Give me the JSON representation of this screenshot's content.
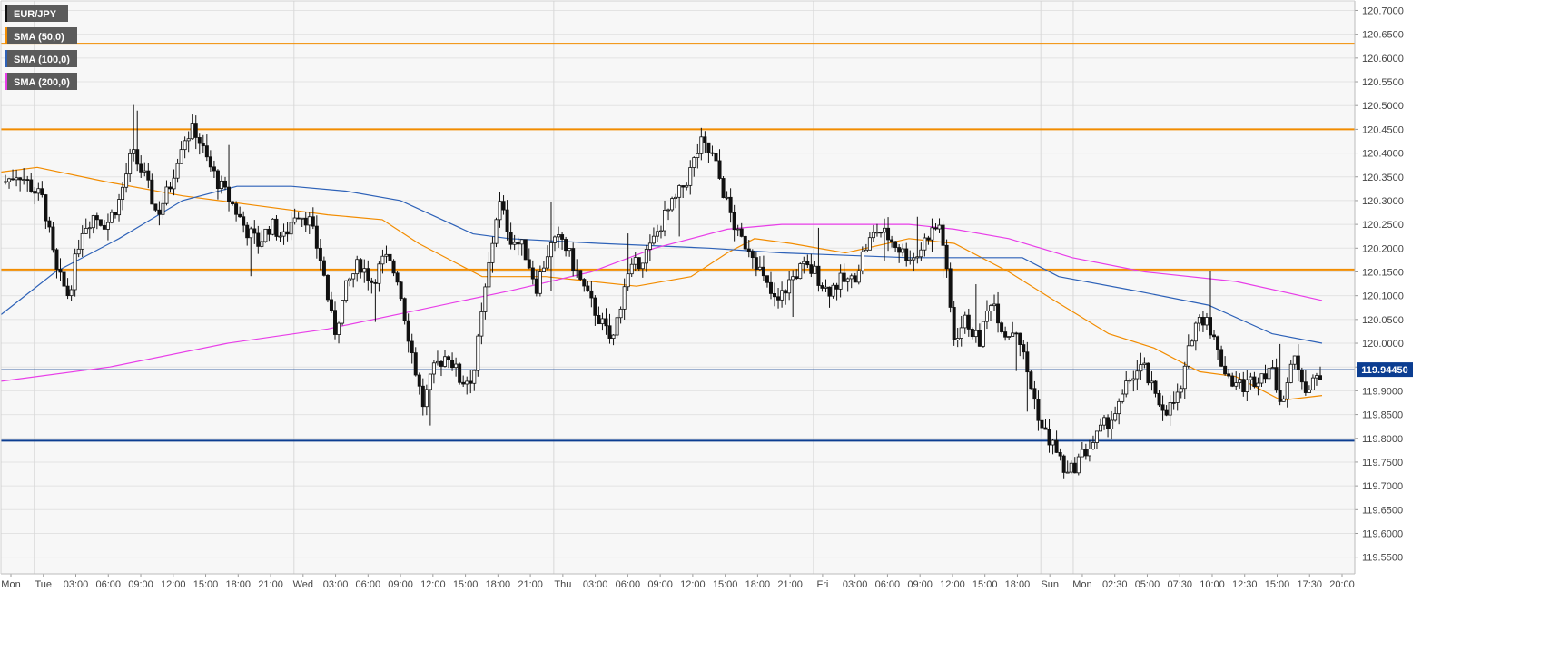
{
  "chart_data": {
    "type": "candlestick",
    "symbol": "EURJPY",
    "price_axis": {
      "ticks": [
        "120.7000",
        "120.6500",
        "120.6000",
        "120.5500",
        "120.5000",
        "120.4500",
        "120.4000",
        "120.3500",
        "120.3000",
        "120.2500",
        "120.2000",
        "120.1500",
        "120.1000",
        "120.0500",
        "120.0000",
        "119.9500",
        "119.9000",
        "119.8500",
        "119.8000",
        "119.7500",
        "119.7000",
        "119.6500",
        "119.6000",
        "119.5500"
      ],
      "range": [
        119.515,
        120.72
      ],
      "position": "right"
    },
    "time_axis": {
      "labels": [
        "Mon",
        "Tue",
        "03:00",
        "06:00",
        "09:00",
        "12:00",
        "15:00",
        "18:00",
        "21:00",
        "Wed",
        "03:00",
        "06:00",
        "09:00",
        "12:00",
        "15:00",
        "18:00",
        "21:00",
        "Thu",
        "03:00",
        "06:00",
        "09:00",
        "12:00",
        "15:00",
        "18:00",
        "21:00",
        "Fri",
        "03:00",
        "06:00",
        "09:00",
        "12:00",
        "15:00",
        "18:00",
        "Sun",
        "Mon",
        "02:30",
        "05:00",
        "07:30",
        "10:00",
        "12:30",
        "15:00",
        "17:30",
        "20:00"
      ]
    },
    "current_price": {
      "label": "119.94450",
      "value": 119.9445,
      "color": "#0b3d91"
    },
    "horizontal_levels": [
      {
        "value": 120.63,
        "color": "#f28c00"
      },
      {
        "value": 120.45,
        "color": "#f28c00"
      },
      {
        "value": 120.155,
        "color": "#f28c00"
      },
      {
        "value": 119.795,
        "color": "#0b3d91"
      }
    ],
    "legend": {
      "placement": "top-left",
      "items": [
        {
          "label": "EUR/JPY",
          "color": "#111111"
        },
        {
          "label": "SMA (50,0)",
          "color": "#f28c00"
        },
        {
          "label": "SMA (100,0)",
          "color": "#2e62b8"
        },
        {
          "label": "SMA (200,0)",
          "color": "#e83ee8"
        }
      ]
    },
    "grid": true,
    "candle_close_anchors": [
      120.34,
      120.36,
      120.33,
      120.3,
      120.15,
      120.1,
      120.24,
      120.27,
      120.25,
      120.3,
      120.4,
      120.35,
      120.27,
      120.33,
      120.43,
      120.45,
      120.38,
      120.33,
      120.29,
      120.24,
      120.21,
      120.25,
      120.22,
      120.28,
      120.26,
      120.17,
      120.02,
      120.12,
      120.17,
      120.13,
      120.18,
      120.14,
      120.0,
      119.87,
      119.95,
      119.98,
      119.92,
      119.93,
      120.12,
      120.3,
      120.22,
      120.2,
      120.12,
      120.2,
      120.22,
      120.16,
      120.1,
      120.05,
      120.0,
      120.13,
      120.17,
      120.2,
      120.26,
      120.3,
      120.35,
      120.42,
      120.39,
      120.3,
      120.22,
      120.2,
      120.13,
      120.08,
      120.13,
      120.16,
      120.15,
      120.11,
      120.13,
      120.13,
      120.2,
      120.24,
      120.22,
      120.19,
      120.18,
      120.23,
      120.25,
      120.01,
      120.05,
      120.0,
      120.1,
      120.02,
      120.03,
      119.92,
      119.82,
      119.78,
      119.72,
      119.76,
      119.79,
      119.83,
      119.86,
      119.93,
      119.95,
      119.88,
      119.86,
      119.9,
      120.04,
      120.06,
      119.97,
      119.92,
      119.91,
      119.93,
      119.95,
      119.88,
      119.97,
      119.9,
      119.94
    ],
    "sma_paths": {
      "sma_50": [
        [
          0,
          120.36
        ],
        [
          40,
          120.37
        ],
        [
          115,
          120.34
        ],
        [
          200,
          120.31
        ],
        [
          280,
          120.29
        ],
        [
          360,
          120.27
        ],
        [
          420,
          120.26
        ],
        [
          460,
          120.21
        ],
        [
          500,
          120.17
        ],
        [
          530,
          120.14
        ],
        [
          600,
          120.14
        ],
        [
          700,
          120.12
        ],
        [
          760,
          120.14
        ],
        [
          800,
          120.19
        ],
        [
          830,
          120.22
        ],
        [
          870,
          120.21
        ],
        [
          930,
          120.19
        ],
        [
          1000,
          120.22
        ],
        [
          1050,
          120.21
        ],
        [
          1110,
          120.15
        ],
        [
          1160,
          120.09
        ],
        [
          1220,
          120.02
        ],
        [
          1270,
          119.99
        ],
        [
          1320,
          119.94
        ],
        [
          1360,
          119.93
        ],
        [
          1410,
          119.88
        ],
        [
          1455,
          119.89
        ]
      ],
      "sma_100": [
        [
          0,
          120.06
        ],
        [
          60,
          120.15
        ],
        [
          130,
          120.22
        ],
        [
          200,
          120.3
        ],
        [
          260,
          120.33
        ],
        [
          320,
          120.33
        ],
        [
          380,
          120.32
        ],
        [
          440,
          120.3
        ],
        [
          520,
          120.23
        ],
        [
          560,
          120.22
        ],
        [
          660,
          120.21
        ],
        [
          780,
          120.2
        ],
        [
          860,
          120.19
        ],
        [
          1000,
          120.18
        ],
        [
          1080,
          120.18
        ],
        [
          1125,
          120.18
        ],
        [
          1165,
          120.14
        ],
        [
          1250,
          120.11
        ],
        [
          1330,
          120.08
        ],
        [
          1400,
          120.02
        ],
        [
          1455,
          120.0
        ]
      ],
      "sma_200": [
        [
          0,
          119.92
        ],
        [
          120,
          119.95
        ],
        [
          250,
          120.0
        ],
        [
          360,
          120.03
        ],
        [
          460,
          120.07
        ],
        [
          560,
          120.11
        ],
        [
          650,
          120.15
        ],
        [
          720,
          120.2
        ],
        [
          800,
          120.24
        ],
        [
          860,
          120.25
        ],
        [
          1000,
          120.25
        ],
        [
          1050,
          120.24
        ],
        [
          1110,
          120.22
        ],
        [
          1180,
          120.18
        ],
        [
          1260,
          120.15
        ],
        [
          1360,
          120.13
        ],
        [
          1455,
          120.09
        ]
      ]
    }
  }
}
